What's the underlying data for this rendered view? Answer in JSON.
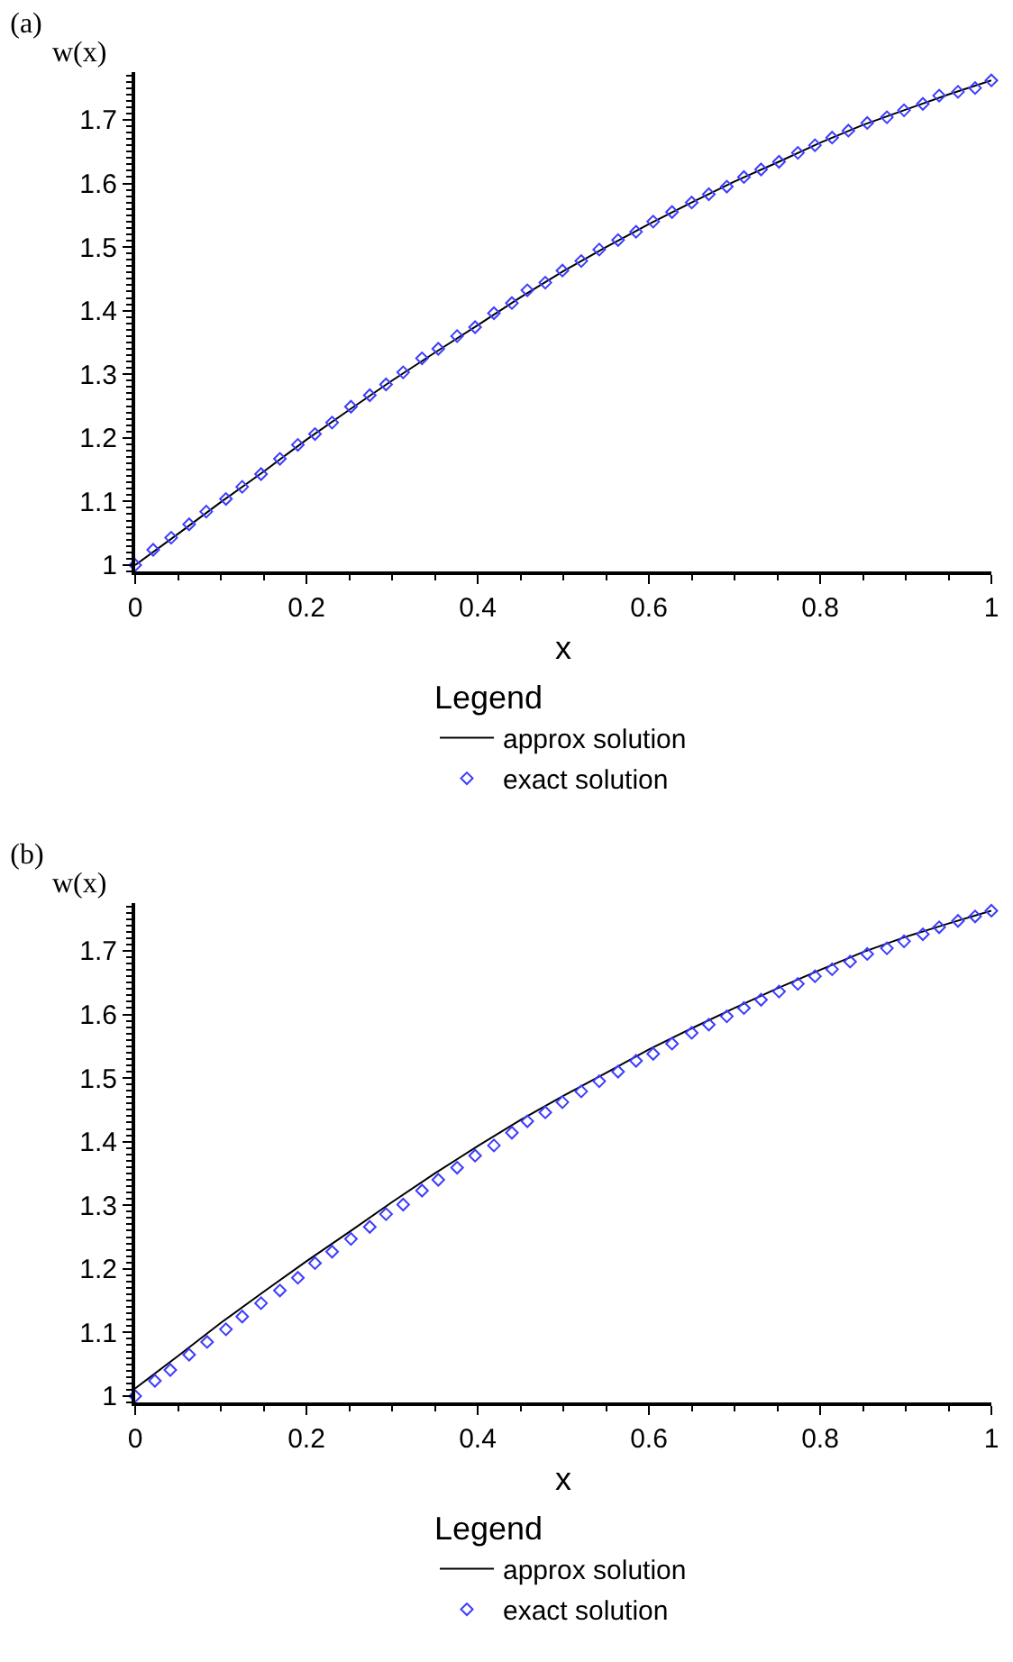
{
  "chart_data": [
    {
      "type": "line",
      "title": "(a)",
      "xlabel": "x",
      "ylabel": "w(x)",
      "legend_title": "Legend",
      "legend": "bottom",
      "grid": false,
      "xlim": [
        0,
        1
      ],
      "ylim": [
        0.99,
        1.775
      ],
      "xticks": [
        0,
        0.2,
        0.4,
        0.6,
        0.8,
        1
      ],
      "yticks": [
        1,
        1.1,
        1.2,
        1.3,
        1.4,
        1.5,
        1.6,
        1.7
      ],
      "series": [
        {
          "name": "approx solution",
          "type": "line",
          "color": "#000000",
          "marker": "none",
          "line_style": "solid",
          "x": [
            0,
            0.05,
            0.1,
            0.15,
            0.2,
            0.25,
            0.3,
            0.35,
            0.4,
            0.45,
            0.5,
            0.55,
            0.6,
            0.65,
            0.7,
            0.75,
            0.8,
            0.85,
            0.9,
            0.95,
            1
          ],
          "values": [
            1.0,
            1.049,
            1.099,
            1.147,
            1.197,
            1.244,
            1.29,
            1.334,
            1.377,
            1.421,
            1.462,
            1.5,
            1.536,
            1.57,
            1.603,
            1.633,
            1.664,
            1.692,
            1.716,
            1.74,
            1.762
          ]
        },
        {
          "name": "exact solution",
          "type": "scatter",
          "color": "#3c3cff",
          "marker": "diamond",
          "x": [
            0,
            0.021,
            0.042,
            0.063,
            0.083,
            0.106,
            0.125,
            0.147,
            0.169,
            0.19,
            0.21,
            0.23,
            0.252,
            0.274,
            0.293,
            0.313,
            0.335,
            0.354,
            0.376,
            0.397,
            0.419,
            0.44,
            0.458,
            0.479,
            0.499,
            0.521,
            0.542,
            0.564,
            0.585,
            0.605,
            0.627,
            0.65,
            0.67,
            0.691,
            0.711,
            0.731,
            0.752,
            0.774,
            0.794,
            0.814,
            0.833,
            0.855,
            0.878,
            0.898,
            0.92,
            0.939,
            0.961,
            0.981,
            1.0
          ],
          "values": [
            1.0,
            1.024,
            1.043,
            1.064,
            1.084,
            1.104,
            1.123,
            1.143,
            1.167,
            1.189,
            1.206,
            1.224,
            1.249,
            1.267,
            1.284,
            1.303,
            1.325,
            1.34,
            1.36,
            1.374,
            1.396,
            1.412,
            1.432,
            1.444,
            1.463,
            1.478,
            1.496,
            1.511,
            1.524,
            1.54,
            1.555,
            1.57,
            1.583,
            1.595,
            1.61,
            1.622,
            1.634,
            1.648,
            1.66,
            1.672,
            1.683,
            1.695,
            1.704,
            1.715,
            1.725,
            1.738,
            1.744,
            1.75,
            1.762
          ]
        }
      ]
    },
    {
      "type": "line",
      "title": "(b)",
      "xlabel": "x",
      "ylabel": "w(x)",
      "legend_title": "Legend",
      "legend": "bottom",
      "grid": false,
      "xlim": [
        0,
        1
      ],
      "ylim": [
        0.99,
        1.775
      ],
      "xticks": [
        0,
        0.2,
        0.4,
        0.6,
        0.8,
        1
      ],
      "yticks": [
        1,
        1.1,
        1.2,
        1.3,
        1.4,
        1.5,
        1.6,
        1.7
      ],
      "series": [
        {
          "name": "approx solution",
          "type": "line",
          "color": "#000000",
          "marker": "none",
          "line_style": "solid",
          "x": [
            0,
            0.05,
            0.1,
            0.15,
            0.2,
            0.25,
            0.3,
            0.35,
            0.4,
            0.45,
            0.5,
            0.55,
            0.6,
            0.65,
            0.7,
            0.75,
            0.8,
            0.85,
            0.9,
            0.95,
            1
          ],
          "values": [
            1.012,
            1.063,
            1.115,
            1.164,
            1.212,
            1.258,
            1.305,
            1.35,
            1.393,
            1.434,
            1.472,
            1.508,
            1.545,
            1.578,
            1.61,
            1.641,
            1.67,
            1.698,
            1.722,
            1.743,
            1.763
          ]
        },
        {
          "name": "exact solution",
          "type": "scatter",
          "color": "#3c3cff",
          "marker": "diamond",
          "x": [
            0,
            0.023,
            0.041,
            0.063,
            0.084,
            0.106,
            0.125,
            0.147,
            0.169,
            0.19,
            0.21,
            0.23,
            0.252,
            0.274,
            0.293,
            0.313,
            0.335,
            0.354,
            0.376,
            0.397,
            0.419,
            0.44,
            0.458,
            0.479,
            0.499,
            0.521,
            0.542,
            0.564,
            0.585,
            0.605,
            0.627,
            0.65,
            0.67,
            0.691,
            0.711,
            0.731,
            0.752,
            0.774,
            0.794,
            0.814,
            0.835,
            0.855,
            0.878,
            0.898,
            0.92,
            0.939,
            0.961,
            0.981,
            1.0
          ],
          "values": [
            1.0,
            1.024,
            1.041,
            1.065,
            1.085,
            1.105,
            1.125,
            1.146,
            1.166,
            1.186,
            1.209,
            1.227,
            1.247,
            1.266,
            1.286,
            1.301,
            1.323,
            1.34,
            1.359,
            1.378,
            1.394,
            1.414,
            1.432,
            1.446,
            1.462,
            1.479,
            1.495,
            1.51,
            1.527,
            1.538,
            1.554,
            1.571,
            1.584,
            1.597,
            1.61,
            1.623,
            1.636,
            1.648,
            1.66,
            1.671,
            1.683,
            1.695,
            1.704,
            1.715,
            1.726,
            1.737,
            1.747,
            1.754,
            1.763
          ]
        }
      ]
    }
  ]
}
